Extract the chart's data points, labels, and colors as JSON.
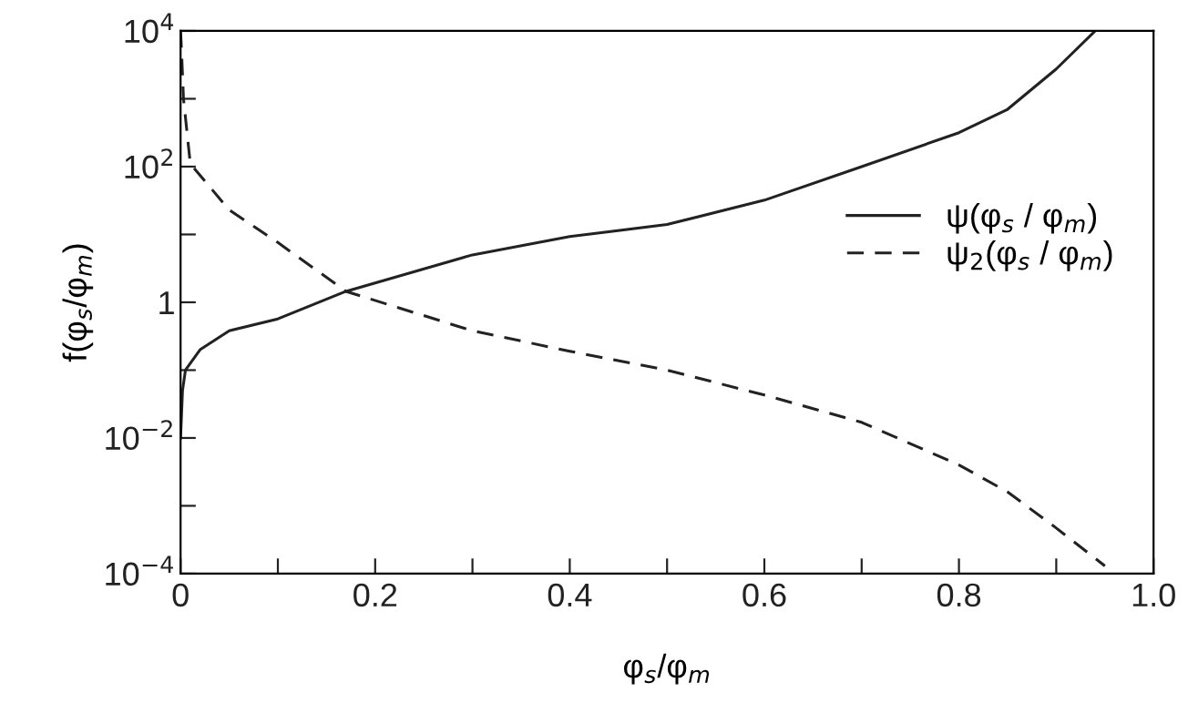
{
  "chart_data": {
    "type": "line",
    "xlabel": "φ$_{s}$/φ$_{m}$",
    "ylabel": "f(φ$_{s}$/φ$_{m}$)",
    "log": "y",
    "xlim": [
      0,
      1.0
    ],
    "ylim": [
      0.0001,
      10000
    ],
    "xticks": [
      0,
      {
        "value": 0.1,
        "label": null
      },
      0.2,
      {
        "value": 0.3,
        "label": null
      },
      0.4,
      {
        "value": 0.5,
        "label": null
      },
      0.6,
      {
        "value": 0.7,
        "label": null
      },
      0.8,
      {
        "value": 0.9,
        "label": null
      },
      {
        "value": 1.0,
        "label": "1.0"
      }
    ],
    "yticks": [
      {
        "value": 0.0001,
        "label": "10$^{−4}$"
      },
      {
        "value": 0.001,
        "label": null
      },
      {
        "value": 0.01,
        "label": "10$^{−2}$"
      },
      {
        "value": 0.1,
        "label": null
      },
      1,
      {
        "value": 10,
        "label": null
      },
      {
        "value": 100,
        "label": "10$^{2}$"
      },
      {
        "value": 1000,
        "label": null
      },
      {
        "value": 10000,
        "label": "10$^{4}$"
      }
    ],
    "grid": false,
    "legend": "right",
    "marker": "none",
    "series": [
      {
        "name": "ψ(φ$_{s}$ / φ$_{m}$)",
        "color": "#222222",
        "line_style": "solid",
        "x": [
          0.0,
          0.002,
          0.005,
          0.02,
          0.05,
          0.1,
          0.17,
          0.3,
          0.4,
          0.5,
          0.6,
          0.7,
          0.8,
          0.85,
          0.9,
          0.94
        ],
        "values": [
          0.01,
          0.05,
          0.1,
          0.2,
          0.38,
          0.57,
          1.45,
          5,
          9.3,
          14,
          32,
          100,
          316,
          700,
          2750,
          10000
        ]
      },
      {
        "name": "ψ$_{2}$(φ$_{s}$ / φ$_{m}$)",
        "color": "#222222",
        "line_style": "dashed",
        "x": [
          0.0,
          0.001,
          0.003,
          0.01,
          0.05,
          0.1,
          0.17,
          0.3,
          0.4,
          0.5,
          0.6,
          0.7,
          0.8,
          0.85,
          0.9,
          0.95
        ],
        "values": [
          10000,
          5000,
          1000,
          110,
          23,
          7.6,
          1.45,
          0.38,
          0.19,
          0.1,
          0.043,
          0.017,
          0.004,
          0.0016,
          0.00047,
          0.00013
        ]
      }
    ]
  }
}
